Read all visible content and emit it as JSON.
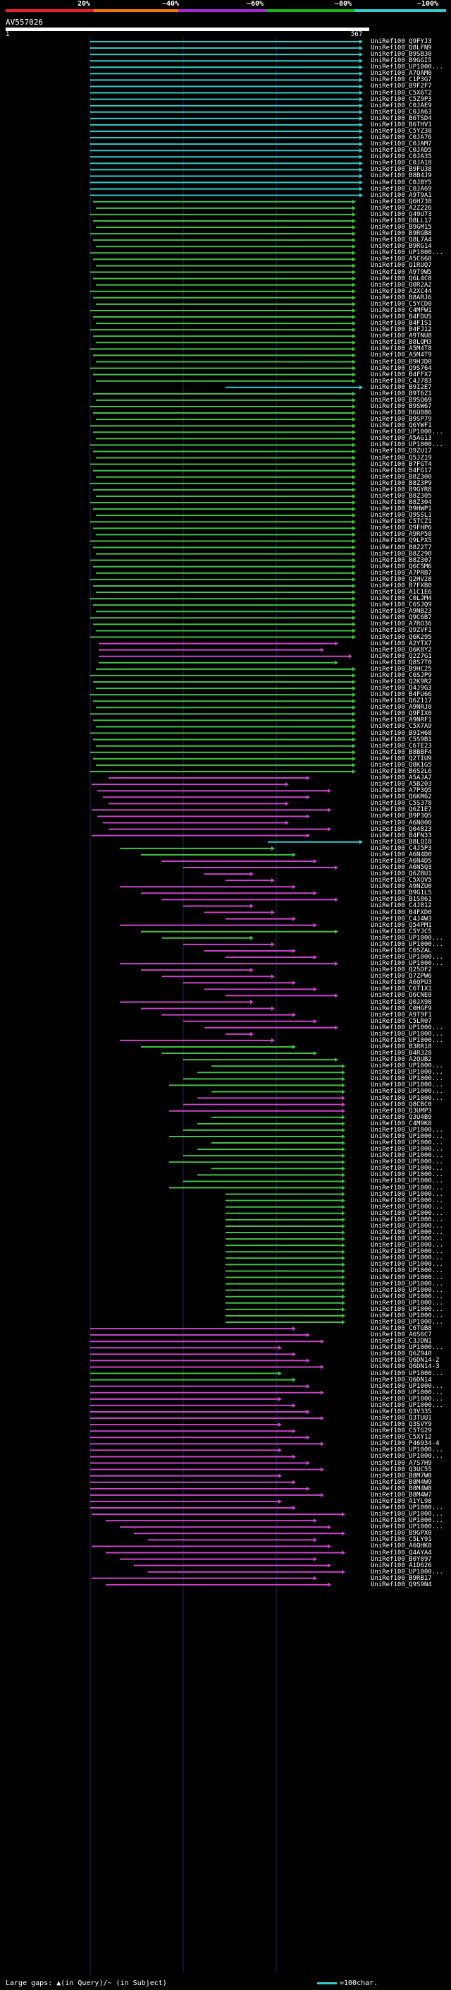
{
  "scale": {
    "ticks": [
      "20%",
      "~40%",
      "~60%",
      "~80%",
      "~100%"
    ],
    "colors": [
      "#e8202a",
      "#f07800",
      "#a22ad0",
      "#18b418",
      "#33cccc"
    ]
  },
  "query": {
    "id": "AV557026",
    "start": "1",
    "end": "567"
  },
  "colors": {
    "cyan": "#33cccc",
    "green": "#44c044",
    "magenta": "#cc44cc",
    "grid": "#1b2b4b",
    "bg": "#000000"
  },
  "hits": [
    "UniRef100_Q9FYJ3",
    "UniRef100_Q8LFN9",
    "UniRef100_B9SB30",
    "UniRef100_B9GGI5",
    "UniRef100_UP1000...",
    "UniRef100_A7QAM0",
    "UniRef100_C1P3G7",
    "UniRef100_B9F2F7",
    "UniRef100_C5X6T2",
    "UniRef100_C5Z9P3",
    "UniRef100_C0JAE9",
    "UniRef100_C0JA63",
    "UniRef100_B6TSD4",
    "UniRef100_B6THV1",
    "UniRef100_C5YZ38",
    "UniRef100_C0JA76",
    "UniRef100_C0JAM7",
    "UniRef100_C0JAD5",
    "UniRef100_C0JA35",
    "UniRef100_C0JA18",
    "UniRef100_B9FU38",
    "UniRef100_B8B4J9",
    "UniRef100_C0JBY5",
    "UniRef100_C0JA69",
    "UniRef100_A9T9A1",
    "UniRef100_Q6H738",
    "UniRef100_A2Z226",
    "UniRef100_Q49U73",
    "UniRef100_B8LL17",
    "UniRef100_B9GM15",
    "UniRef100_B9RGB8",
    "UniRef100_Q8L7A4",
    "UniRef100_B9RG14",
    "UniRef100_UP1000...",
    "UniRef100_A5C668",
    "UniRef100_Q1RUQ7",
    "UniRef100_A9T9W5",
    "UniRef100_Q6L4C8",
    "UniRef100_Q0R2A2",
    "UniRef100_A2XC44",
    "UniRef100_B8ARJ6",
    "UniRef100_C5YCD0",
    "UniRef100_C4MFW1",
    "UniRef100_B4FDU5",
    "UniRef100_B4F1S1",
    "UniRef100_B4FJ12",
    "UniRef100_A9TNU8",
    "UniRef100_B8LQM3",
    "UniRef100_A5M4T8",
    "UniRef100_A5M4T9",
    "UniRef100_B9HJD0",
    "UniRef100_Q9S764",
    "UniRef100_B4FFX7",
    "UniRef100_C4J783",
    "UniRef100_B9I2E7",
    "UniRef100_B9T6Z1",
    "UniRef100_B9SQ69",
    "UniRef100_B9SW67",
    "UniRef100_B6U886",
    "UniRef100_B9SP79",
    "UniRef100_Q6YWF1",
    "UniRef100_UP1000...",
    "UniRef100_A5AG13",
    "UniRef100_UP1000...",
    "UniRef100_Q9ZU17",
    "UniRef100_Q5JZ19",
    "UniRef100_B7FGT4",
    "UniRef100_B4FG17",
    "UniRef100_B8Z300",
    "UniRef100_B8Z3P9",
    "UniRef100_B9GYR8",
    "UniRef100_B8Z305",
    "UniRef100_B8Z304",
    "UniRef100_B9HWP1",
    "UniRef100_Q9SSL1",
    "UniRef100_C5TCZ1",
    "UniRef100_Q9FHP6",
    "UniRef100_A9RP58",
    "UniRef100_Q9LPX5",
    "UniRef100_B8Z2T7",
    "UniRef100_B8Z290",
    "UniRef100_B8Z307",
    "UniRef100_Q6C5M6",
    "UniRef100_A7PRB7",
    "UniRef100_Q2HV28",
    "UniRef100_B7FXB0",
    "UniRef100_A1C1E6",
    "UniRef100_C0LJM4",
    "UniRef100_C6SJQ9",
    "UniRef100_A9NB23",
    "UniRef100_Q9C6B7",
    "UniRef100_A7RO36",
    "UniRef100_Q9ZVF1",
    "UniRef100_Q6K295",
    "UniRef100_A2YTX7",
    "UniRef100_Q6K8Y2",
    "UniRef100_Q2Z7G1",
    "UniRef100_Q8S7T0",
    "UniRef100_B9HC25",
    "UniRef100_C6SJP9",
    "UniRef100_Q2K9R2",
    "UniRef100_Q4J9G3",
    "UniRef100_B4FU66",
    "UniRef100_Q6Z117",
    "UniRef100_A9NRJ0",
    "UniRef100_Q9FIX0",
    "UniRef100_A9NRF1",
    "UniRef100_C5X7A9",
    "UniRef100_B9IH68",
    "UniRef100_C5S9B1",
    "UniRef100_C6TE23",
    "UniRef100_B8BBF4",
    "UniRef100_Q2TIU9",
    "UniRef100_Q8K1G5",
    "UniRef100_B6S2L6",
    "UniRef100_A5AJA7",
    "UniRef100_A5B203",
    "UniRef100_A7P3Q5",
    "UniRef100_Q6KM62",
    "UniRef100_C5S378",
    "UniRef100_Q6Z1E7",
    "UniRef100_B9P3Q5",
    "UniRef100_A6N000",
    "UniRef100_Q04823",
    "UniRef100_B4FN33",
    "UniRef100_B8LQI8",
    "UniRef100_C4J5P3",
    "UniRef100_A6N4D0",
    "UniRef100_A6N4D5",
    "UniRef100_A6N5Q3",
    "UniRef100_Q6ZBU1",
    "UniRef100_C5XQV5",
    "UniRef100_A9NZU0",
    "UniRef100_B9G1L5",
    "UniRef100_B1S861",
    "UniRef100_C4J812",
    "UniRef100_B4FXD0",
    "UniRef100_C4J4W3",
    "UniRef100_Q54PM1",
    "UniRef100_C5YJC5",
    "UniRef100_UP1000...",
    "UniRef100_UP1000...",
    "UniRef100_C6SZAL",
    "UniRef100_UP1000...",
    "UniRef100_UP1000...",
    "UniRef100_Q25DF2",
    "UniRef100_Q7ZPW6",
    "UniRef100_A6QPU3",
    "UniRef100_C6T1X1",
    "UniRef100_Q6CNE0",
    "UniRef100_Q0JX98",
    "UniRef100_C0HGF9",
    "UniRef100_A9T9F1",
    "UniRef100_C5LR07",
    "UniRef100_UP1000...",
    "UniRef100_UP1000...",
    "UniRef100_UP1000...",
    "UniRef100_B3RR18",
    "UniRef100_B4R328",
    "UniRef100_A2QUB2",
    "UniRef100_UP1000...",
    "UniRef100_UP1000...",
    "UniRef100_UP1000...",
    "UniRef100_UP1000...",
    "UniRef100_UP1000...",
    "UniRef100_UP1000...",
    "UniRef100_Q8CBC0",
    "UniRef100_Q3UMP3",
    "UniRef100_Q3U4B9",
    "UniRef100_C4M9K8",
    "UniRef100_UP1000...",
    "UniRef100_UP1000...",
    "UniRef100_UP1000...",
    "UniRef100_UP1000...",
    "UniRef100_UP1000...",
    "UniRef100_UP1000...",
    "UniRef100_UP1000...",
    "UniRef100_UP1000...",
    "UniRef100_UP1000...",
    "UniRef100_UP1000...",
    "UniRef100_UP1000...",
    "UniRef100_UP1000...",
    "UniRef100_UP1000...",
    "UniRef100_UP1000...",
    "UniRef100_UP1000...",
    "UniRef100_UP1000...",
    "UniRef100_UP1000...",
    "UniRef100_UP1000...",
    "UniRef100_UP1000...",
    "UniRef100_UP1000...",
    "UniRef100_UP1000...",
    "UniRef100_UP1000...",
    "UniRef100_UP1000...",
    "UniRef100_UP1000...",
    "UniRef100_UP1000...",
    "UniRef100_UP1000...",
    "UniRef100_UP1000...",
    "UniRef100_UP1000...",
    "UniRef100_UP1000...",
    "UniRef100_UP1000...",
    "UniRef100_UP1000...",
    "UniRef100_C6TGB8",
    "UniRef100_A6S6C7",
    "UniRef100_C3JDN1",
    "UniRef100_UP1000...",
    "UniRef100_Q6Z940",
    "UniRef100_Q6DN14-2",
    "UniRef100_Q6DN14-3",
    "UniRef100_UP1000...",
    "UniRef100_Q6DN14",
    "UniRef100_UP1000...",
    "UniRef100_UP1000...",
    "UniRef100_UP1000...",
    "UniRef100_UP1000...",
    "UniRef100_Q3V335",
    "UniRef100_Q3TUU1",
    "UniRef100_Q3SVY9",
    "UniRef100_C5TG29",
    "UniRef100_C5XY12",
    "UniRef100_P46934-4",
    "UniRef100_UP1000...",
    "UniRef100_UP1000...",
    "UniRef100_A7S7H9",
    "UniRef100_Q3UC55",
    "UniRef100_B8M7W0",
    "UniRef100_B8M4W9",
    "UniRef100_B8M4W8",
    "UniRef100_B8M4W7",
    "UniRef100_A1YL98",
    "UniRef100_UP1000...",
    "UniRef100_UP1000...",
    "UniRef100_UP1000...",
    "UniRef100_UP1000...",
    "UniRef100_B9GPX0",
    "UniRef100_C5LY91",
    "UniRef100_A6QHK0",
    "UniRef100_Q4AYA4",
    "UniRef100_B0Y097",
    "UniRef100_A1D626",
    "UniRef100_UP1000...",
    "UniRef100_B9RB17",
    "UniRef100_Q9S9N4"
  ],
  "footer": {
    "text": "Large gaps: ▲(in Query)/~ (in Subject)",
    "legend": "=100char."
  }
}
